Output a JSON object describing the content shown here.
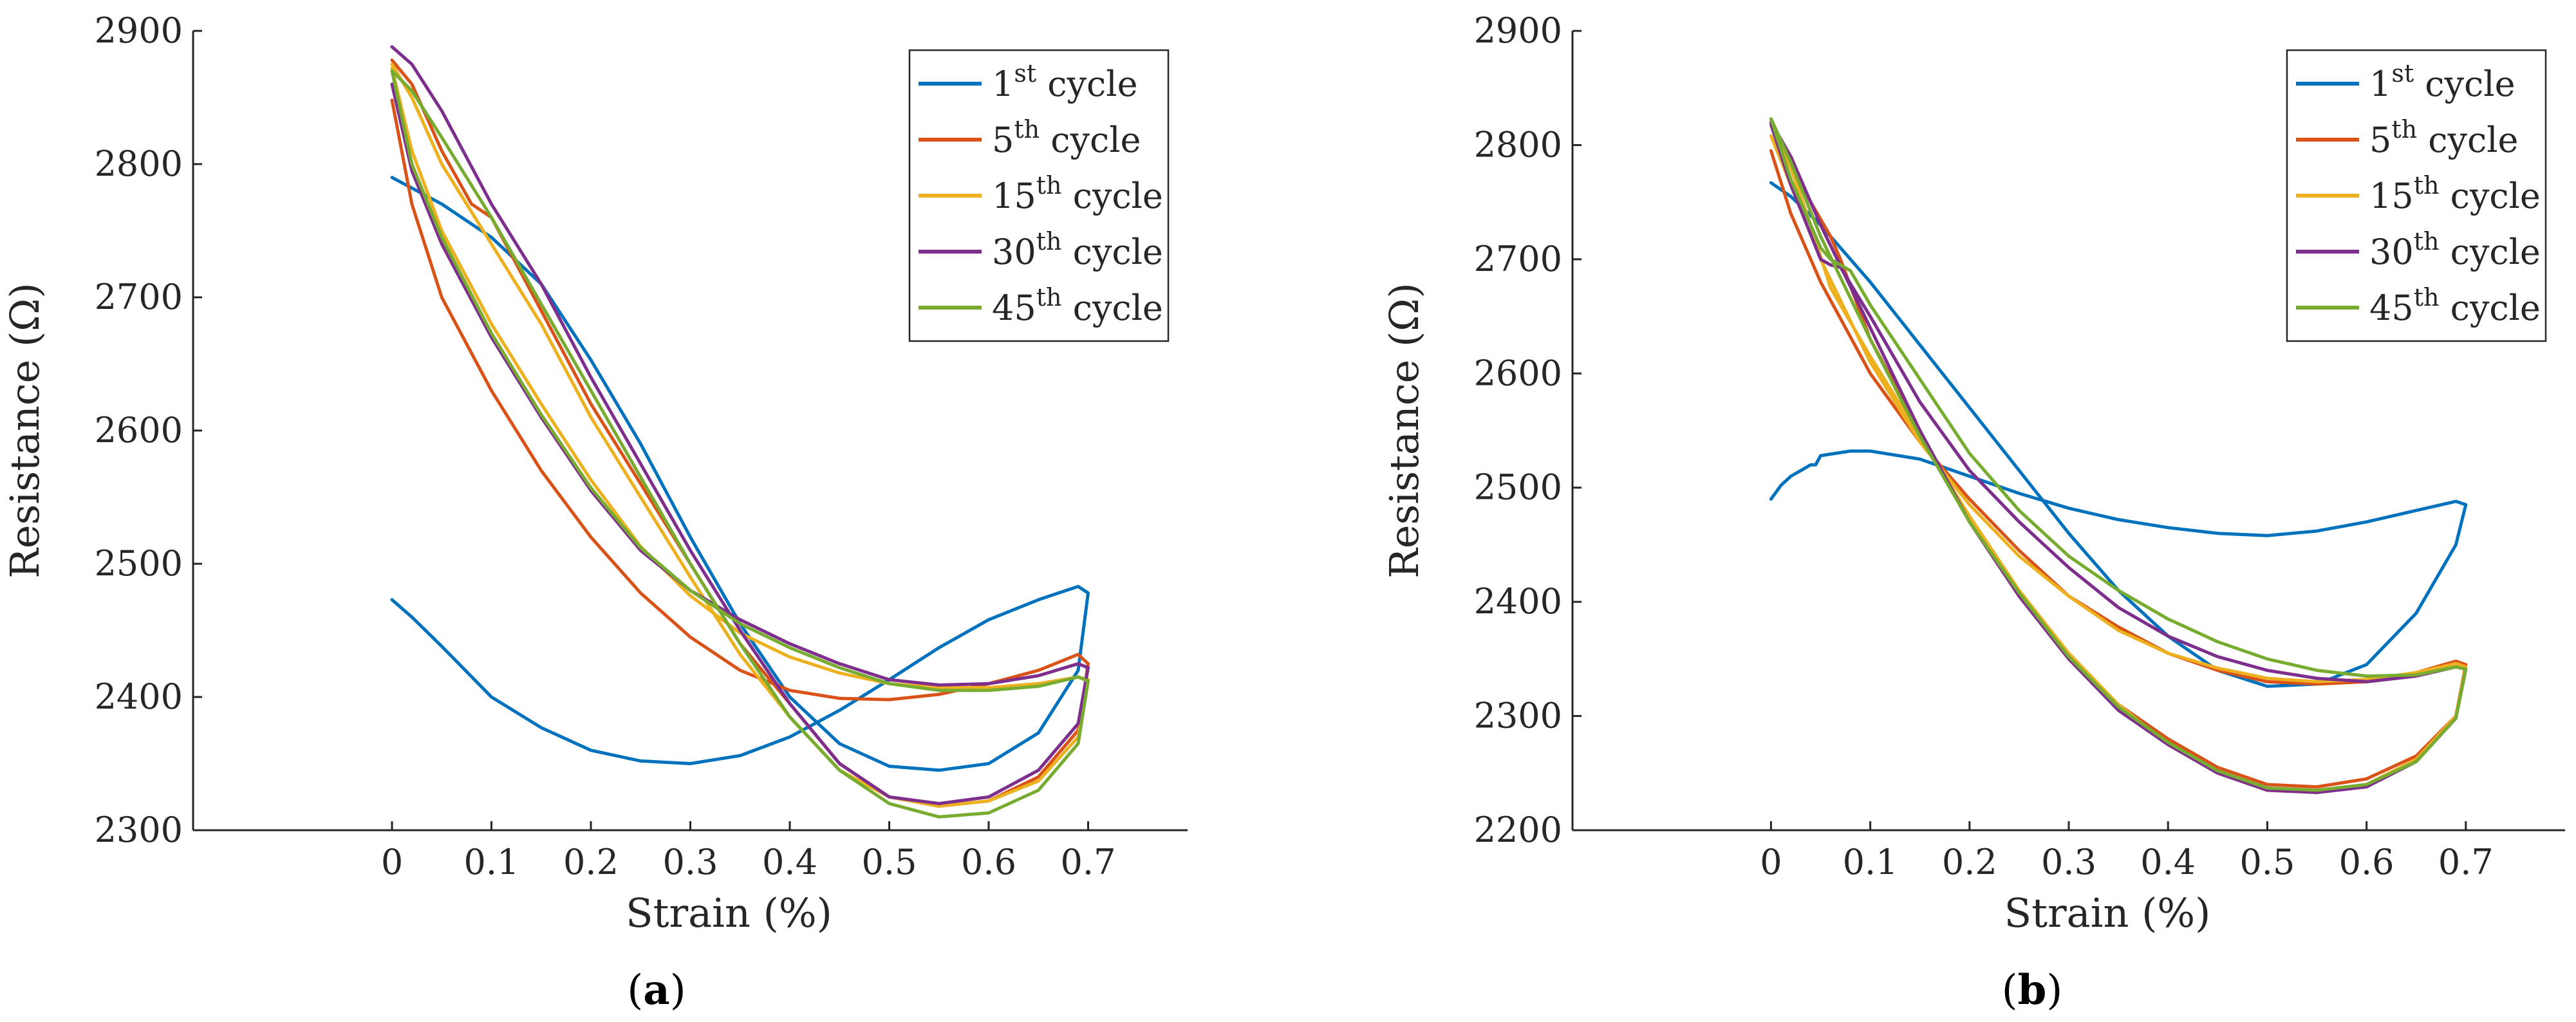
{
  "chart_data": [
    {
      "type": "line",
      "panel_label": "a",
      "title": "",
      "xlabel": "Strain (%)",
      "ylabel": "Resistance (Ω)",
      "xlim": [
        -0.2,
        0.8
      ],
      "ylim": [
        2300,
        2900
      ],
      "xticks": [
        0,
        0.1,
        0.2,
        0.3,
        0.4,
        0.5,
        0.6,
        0.7
      ],
      "xtick_labels": [
        "0",
        "0.1",
        "0.2",
        "0.3",
        "0.4",
        "0.5",
        "0.6",
        "0.7"
      ],
      "yticks": [
        2300,
        2400,
        2500,
        2600,
        2700,
        2800,
        2900
      ],
      "ytick_labels": [
        "2300",
        "2400",
        "2500",
        "2600",
        "2700",
        "2800",
        "2900"
      ],
      "legend_position": "top-right",
      "series": [
        {
          "name": "1st cycle",
          "label_sup": "st",
          "label_num": "1",
          "label_rest": " cycle",
          "color": "#0072BD",
          "x": [
            0.0,
            0.02,
            0.05,
            0.1,
            0.15,
            0.2,
            0.25,
            0.3,
            0.35,
            0.4,
            0.45,
            0.5,
            0.55,
            0.6,
            0.65,
            0.69,
            0.7,
            0.69,
            0.65,
            0.6,
            0.55,
            0.5,
            0.45,
            0.4,
            0.35,
            0.3,
            0.25,
            0.2,
            0.15,
            0.1,
            0.05,
            0.0
          ],
          "y": [
            2473,
            2460,
            2438,
            2400,
            2377,
            2360,
            2352,
            2350,
            2356,
            2370,
            2390,
            2413,
            2437,
            2458,
            2473,
            2483,
            2478,
            2420,
            2373,
            2350,
            2345,
            2348,
            2365,
            2400,
            2455,
            2520,
            2590,
            2653,
            2710,
            2745,
            2770,
            2790
          ]
        },
        {
          "name": "5th cycle",
          "label_sup": "th",
          "label_num": "5",
          "label_rest": " cycle",
          "color": "#D95319",
          "x": [
            0.0,
            0.02,
            0.05,
            0.1,
            0.15,
            0.2,
            0.25,
            0.3,
            0.35,
            0.4,
            0.45,
            0.5,
            0.55,
            0.6,
            0.65,
            0.69,
            0.7,
            0.69,
            0.65,
            0.6,
            0.55,
            0.5,
            0.45,
            0.4,
            0.35,
            0.3,
            0.25,
            0.2,
            0.15,
            0.1,
            0.08,
            0.05,
            0.02,
            0.0
          ],
          "y": [
            2848,
            2770,
            2700,
            2630,
            2570,
            2520,
            2478,
            2445,
            2420,
            2405,
            2399,
            2398,
            2402,
            2410,
            2420,
            2432,
            2425,
            2375,
            2340,
            2322,
            2318,
            2325,
            2350,
            2395,
            2440,
            2500,
            2560,
            2620,
            2690,
            2760,
            2770,
            2810,
            2860,
            2878
          ]
        },
        {
          "name": "15th cycle",
          "label_sup": "th",
          "label_num": "15",
          "label_rest": " cycle",
          "color": "#EDB120",
          "x": [
            0.0,
            0.02,
            0.05,
            0.1,
            0.15,
            0.2,
            0.25,
            0.3,
            0.35,
            0.4,
            0.45,
            0.5,
            0.55,
            0.6,
            0.65,
            0.69,
            0.7,
            0.69,
            0.65,
            0.6,
            0.55,
            0.5,
            0.45,
            0.4,
            0.35,
            0.3,
            0.25,
            0.2,
            0.15,
            0.1,
            0.05,
            0.02,
            0.0
          ],
          "y": [
            2872,
            2810,
            2750,
            2680,
            2620,
            2563,
            2513,
            2476,
            2448,
            2430,
            2418,
            2410,
            2407,
            2407,
            2410,
            2415,
            2413,
            2370,
            2337,
            2322,
            2318,
            2325,
            2345,
            2385,
            2432,
            2490,
            2550,
            2610,
            2680,
            2740,
            2800,
            2850,
            2875
          ]
        },
        {
          "name": "30th cycle",
          "label_sup": "th",
          "label_num": "30",
          "label_rest": " cycle",
          "color": "#7E2F8E",
          "x": [
            0.0,
            0.02,
            0.05,
            0.1,
            0.15,
            0.2,
            0.25,
            0.3,
            0.35,
            0.4,
            0.45,
            0.5,
            0.55,
            0.6,
            0.65,
            0.69,
            0.7,
            0.69,
            0.65,
            0.6,
            0.55,
            0.5,
            0.45,
            0.4,
            0.35,
            0.3,
            0.25,
            0.2,
            0.15,
            0.1,
            0.05,
            0.02,
            0.0
          ],
          "y": [
            2860,
            2795,
            2740,
            2670,
            2610,
            2555,
            2510,
            2480,
            2458,
            2440,
            2425,
            2413,
            2409,
            2410,
            2416,
            2425,
            2422,
            2380,
            2345,
            2325,
            2320,
            2325,
            2350,
            2395,
            2450,
            2510,
            2575,
            2640,
            2710,
            2770,
            2840,
            2875,
            2888
          ]
        },
        {
          "name": "45th cycle",
          "label_sup": "th",
          "label_num": "45",
          "label_rest": " cycle",
          "color": "#77AC30",
          "x": [
            0.0,
            0.02,
            0.05,
            0.1,
            0.15,
            0.2,
            0.25,
            0.3,
            0.35,
            0.4,
            0.45,
            0.5,
            0.55,
            0.6,
            0.65,
            0.69,
            0.7,
            0.69,
            0.65,
            0.6,
            0.55,
            0.5,
            0.45,
            0.4,
            0.35,
            0.3,
            0.25,
            0.2,
            0.15,
            0.1,
            0.05,
            0.02,
            0.0
          ],
          "y": [
            2870,
            2800,
            2745,
            2673,
            2612,
            2557,
            2512,
            2480,
            2455,
            2437,
            2422,
            2410,
            2405,
            2405,
            2408,
            2415,
            2412,
            2365,
            2330,
            2313,
            2310,
            2320,
            2345,
            2385,
            2440,
            2500,
            2565,
            2630,
            2695,
            2760,
            2820,
            2855,
            2870
          ]
        }
      ]
    },
    {
      "type": "line",
      "panel_label": "b",
      "title": "",
      "xlabel": "Strain (%)",
      "ylabel": "Resistance (Ω)",
      "xlim": [
        -0.2,
        0.8
      ],
      "ylim": [
        2200,
        2900
      ],
      "xticks": [
        0,
        0.1,
        0.2,
        0.3,
        0.4,
        0.5,
        0.6,
        0.7
      ],
      "xtick_labels": [
        "0",
        "0.1",
        "0.2",
        "0.3",
        "0.4",
        "0.5",
        "0.6",
        "0.7"
      ],
      "yticks": [
        2200,
        2300,
        2400,
        2500,
        2600,
        2700,
        2800,
        2900
      ],
      "ytick_labels": [
        "2200",
        "2300",
        "2400",
        "2500",
        "2600",
        "2700",
        "2800",
        "2900"
      ],
      "legend_position": "top-right",
      "series": [
        {
          "name": "1st cycle",
          "label_sup": "st",
          "label_num": "1",
          "label_rest": " cycle",
          "color": "#0072BD",
          "x": [
            0.0,
            0.01,
            0.02,
            0.04,
            0.045,
            0.05,
            0.08,
            0.1,
            0.15,
            0.2,
            0.25,
            0.3,
            0.35,
            0.4,
            0.45,
            0.5,
            0.55,
            0.6,
            0.65,
            0.69,
            0.7,
            0.69,
            0.65,
            0.6,
            0.55,
            0.5,
            0.45,
            0.4,
            0.35,
            0.3,
            0.25,
            0.2,
            0.15,
            0.1,
            0.05,
            0.02,
            0.0
          ],
          "y": [
            2490,
            2502,
            2510,
            2520,
            2520,
            2528,
            2532,
            2532,
            2525,
            2510,
            2495,
            2482,
            2472,
            2465,
            2460,
            2458,
            2462,
            2470,
            2480,
            2488,
            2485,
            2450,
            2390,
            2345,
            2328,
            2326,
            2340,
            2370,
            2410,
            2460,
            2515,
            2570,
            2625,
            2680,
            2730,
            2755,
            2767
          ]
        },
        {
          "name": "5th cycle",
          "label_sup": "th",
          "label_num": "5",
          "label_rest": " cycle",
          "color": "#D95319",
          "x": [
            0.0,
            0.02,
            0.05,
            0.1,
            0.15,
            0.2,
            0.25,
            0.3,
            0.35,
            0.4,
            0.45,
            0.5,
            0.55,
            0.6,
            0.65,
            0.69,
            0.7,
            0.69,
            0.65,
            0.6,
            0.55,
            0.5,
            0.45,
            0.4,
            0.35,
            0.3,
            0.25,
            0.2,
            0.15,
            0.1,
            0.07,
            0.06,
            0.04,
            0.02,
            0.0
          ],
          "y": [
            2795,
            2740,
            2680,
            2600,
            2540,
            2490,
            2445,
            2405,
            2378,
            2355,
            2340,
            2330,
            2328,
            2330,
            2338,
            2348,
            2345,
            2300,
            2265,
            2245,
            2238,
            2240,
            2255,
            2280,
            2310,
            2350,
            2405,
            2470,
            2550,
            2630,
            2700,
            2720,
            2750,
            2785,
            2820
          ]
        },
        {
          "name": "15th cycle",
          "label_sup": "th",
          "label_num": "15",
          "label_rest": " cycle",
          "color": "#EDB120",
          "x": [
            0.0,
            0.02,
            0.05,
            0.1,
            0.15,
            0.2,
            0.25,
            0.3,
            0.35,
            0.4,
            0.45,
            0.5,
            0.55,
            0.6,
            0.65,
            0.69,
            0.7,
            0.69,
            0.65,
            0.6,
            0.55,
            0.5,
            0.45,
            0.4,
            0.35,
            0.3,
            0.25,
            0.2,
            0.15,
            0.1,
            0.06,
            0.04,
            0.02,
            0.0
          ],
          "y": [
            2808,
            2765,
            2700,
            2610,
            2540,
            2485,
            2440,
            2405,
            2375,
            2355,
            2342,
            2333,
            2330,
            2332,
            2338,
            2346,
            2343,
            2300,
            2262,
            2240,
            2233,
            2235,
            2250,
            2275,
            2310,
            2355,
            2410,
            2475,
            2545,
            2615,
            2675,
            2730,
            2780,
            2818
          ]
        },
        {
          "name": "30th cycle",
          "label_sup": "th",
          "label_num": "30",
          "label_rest": " cycle",
          "color": "#7E2F8E",
          "x": [
            0.0,
            0.02,
            0.05,
            0.06,
            0.07,
            0.1,
            0.15,
            0.2,
            0.25,
            0.3,
            0.35,
            0.4,
            0.45,
            0.5,
            0.55,
            0.6,
            0.65,
            0.69,
            0.7,
            0.69,
            0.65,
            0.6,
            0.55,
            0.5,
            0.45,
            0.4,
            0.35,
            0.3,
            0.25,
            0.2,
            0.15,
            0.1,
            0.05,
            0.02,
            0.0
          ],
          "y": [
            2818,
            2765,
            2700,
            2695,
            2693,
            2650,
            2575,
            2515,
            2470,
            2430,
            2395,
            2370,
            2352,
            2340,
            2333,
            2330,
            2335,
            2343,
            2341,
            2298,
            2260,
            2238,
            2233,
            2235,
            2250,
            2275,
            2305,
            2350,
            2405,
            2470,
            2550,
            2640,
            2730,
            2790,
            2820
          ]
        },
        {
          "name": "45th cycle",
          "label_sup": "th",
          "label_num": "45",
          "label_rest": " cycle",
          "color": "#77AC30",
          "x": [
            0.0,
            0.02,
            0.05,
            0.06,
            0.08,
            0.1,
            0.15,
            0.2,
            0.25,
            0.3,
            0.35,
            0.4,
            0.45,
            0.5,
            0.55,
            0.6,
            0.65,
            0.69,
            0.7,
            0.69,
            0.65,
            0.6,
            0.55,
            0.5,
            0.45,
            0.4,
            0.35,
            0.3,
            0.25,
            0.2,
            0.15,
            0.1,
            0.05,
            0.02,
            0.0
          ],
          "y": [
            2823,
            2770,
            2710,
            2700,
            2690,
            2660,
            2595,
            2530,
            2480,
            2440,
            2410,
            2385,
            2365,
            2350,
            2340,
            2335,
            2336,
            2343,
            2341,
            2298,
            2260,
            2240,
            2235,
            2237,
            2252,
            2277,
            2308,
            2352,
            2408,
            2470,
            2545,
            2630,
            2720,
            2785,
            2823
          ]
        }
      ]
    }
  ]
}
